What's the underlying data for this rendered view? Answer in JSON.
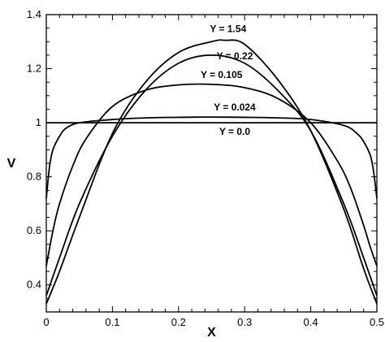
{
  "chart_data": {
    "type": "line",
    "xlabel": "X",
    "ylabel": "V",
    "xlim": [
      0,
      0.5
    ],
    "ylim": [
      0.3,
      1.4
    ],
    "xticks": [
      0,
      0.1,
      0.2,
      0.3,
      0.4,
      0.5
    ],
    "xtick_labels": [
      "0",
      "0.1",
      "0.2",
      "0.3",
      "0.4",
      "0.5"
    ],
    "yticks": [
      0.4,
      0.6,
      0.8,
      1.0,
      1.2,
      1.4
    ],
    "ytick_labels": [
      "0.4",
      "0.6",
      "0.8",
      "1",
      "1.2",
      "1.4"
    ],
    "grid": false,
    "series": [
      {
        "name": "Y = 0.0",
        "x": [
          0,
          0.5
        ],
        "y": [
          1.0,
          1.0
        ]
      },
      {
        "name": "Y = 0.024",
        "x": [
          0,
          0.005,
          0.01,
          0.02,
          0.03,
          0.05,
          0.1,
          0.15,
          0.2,
          0.25,
          0.3,
          0.35,
          0.4,
          0.45,
          0.47,
          0.48,
          0.49,
          0.495,
          0.5
        ],
        "y": [
          0.72,
          0.84,
          0.9,
          0.95,
          0.98,
          1.0,
          1.012,
          1.018,
          1.02,
          1.021,
          1.02,
          1.018,
          1.012,
          0.99,
          0.96,
          0.93,
          0.88,
          0.82,
          0.72
        ]
      },
      {
        "name": "Y = 0.105",
        "x": [
          0,
          0.01,
          0.02,
          0.04,
          0.06,
          0.1,
          0.15,
          0.2,
          0.25,
          0.3,
          0.35,
          0.4,
          0.44,
          0.46,
          0.48,
          0.49,
          0.5
        ],
        "y": [
          0.47,
          0.6,
          0.7,
          0.84,
          0.94,
          1.06,
          1.12,
          1.14,
          1.142,
          1.13,
          1.09,
          1.0,
          0.86,
          0.76,
          0.62,
          0.54,
          0.47
        ]
      },
      {
        "name": "Y = 0.22",
        "x": [
          0,
          0.02,
          0.05,
          0.1,
          0.15,
          0.2,
          0.25,
          0.3,
          0.35,
          0.4,
          0.45,
          0.48,
          0.5
        ],
        "y": [
          0.36,
          0.5,
          0.7,
          0.95,
          1.12,
          1.22,
          1.25,
          1.22,
          1.12,
          0.97,
          0.7,
          0.5,
          0.36
        ]
      },
      {
        "name": "Y = 1.54",
        "x": [
          0,
          0.02,
          0.05,
          0.1,
          0.15,
          0.2,
          0.25,
          0.27,
          0.3,
          0.35,
          0.4,
          0.45,
          0.48,
          0.5
        ],
        "y": [
          0.33,
          0.45,
          0.65,
          0.96,
          1.15,
          1.26,
          1.3,
          1.305,
          1.29,
          1.16,
          0.97,
          0.68,
          0.46,
          0.33
        ]
      }
    ],
    "annotations": [
      {
        "text": "Y = 1.54",
        "x": 0.275,
        "y": 1.335
      },
      {
        "text": "Y = 0.22",
        "x": 0.285,
        "y": 1.235
      },
      {
        "text": "Y = 0.105",
        "x": 0.265,
        "y": 1.165
      },
      {
        "text": "Y = 0.024",
        "x": 0.285,
        "y": 1.045
      },
      {
        "text": "Y = 0.0",
        "x": 0.285,
        "y": 0.955
      }
    ]
  }
}
